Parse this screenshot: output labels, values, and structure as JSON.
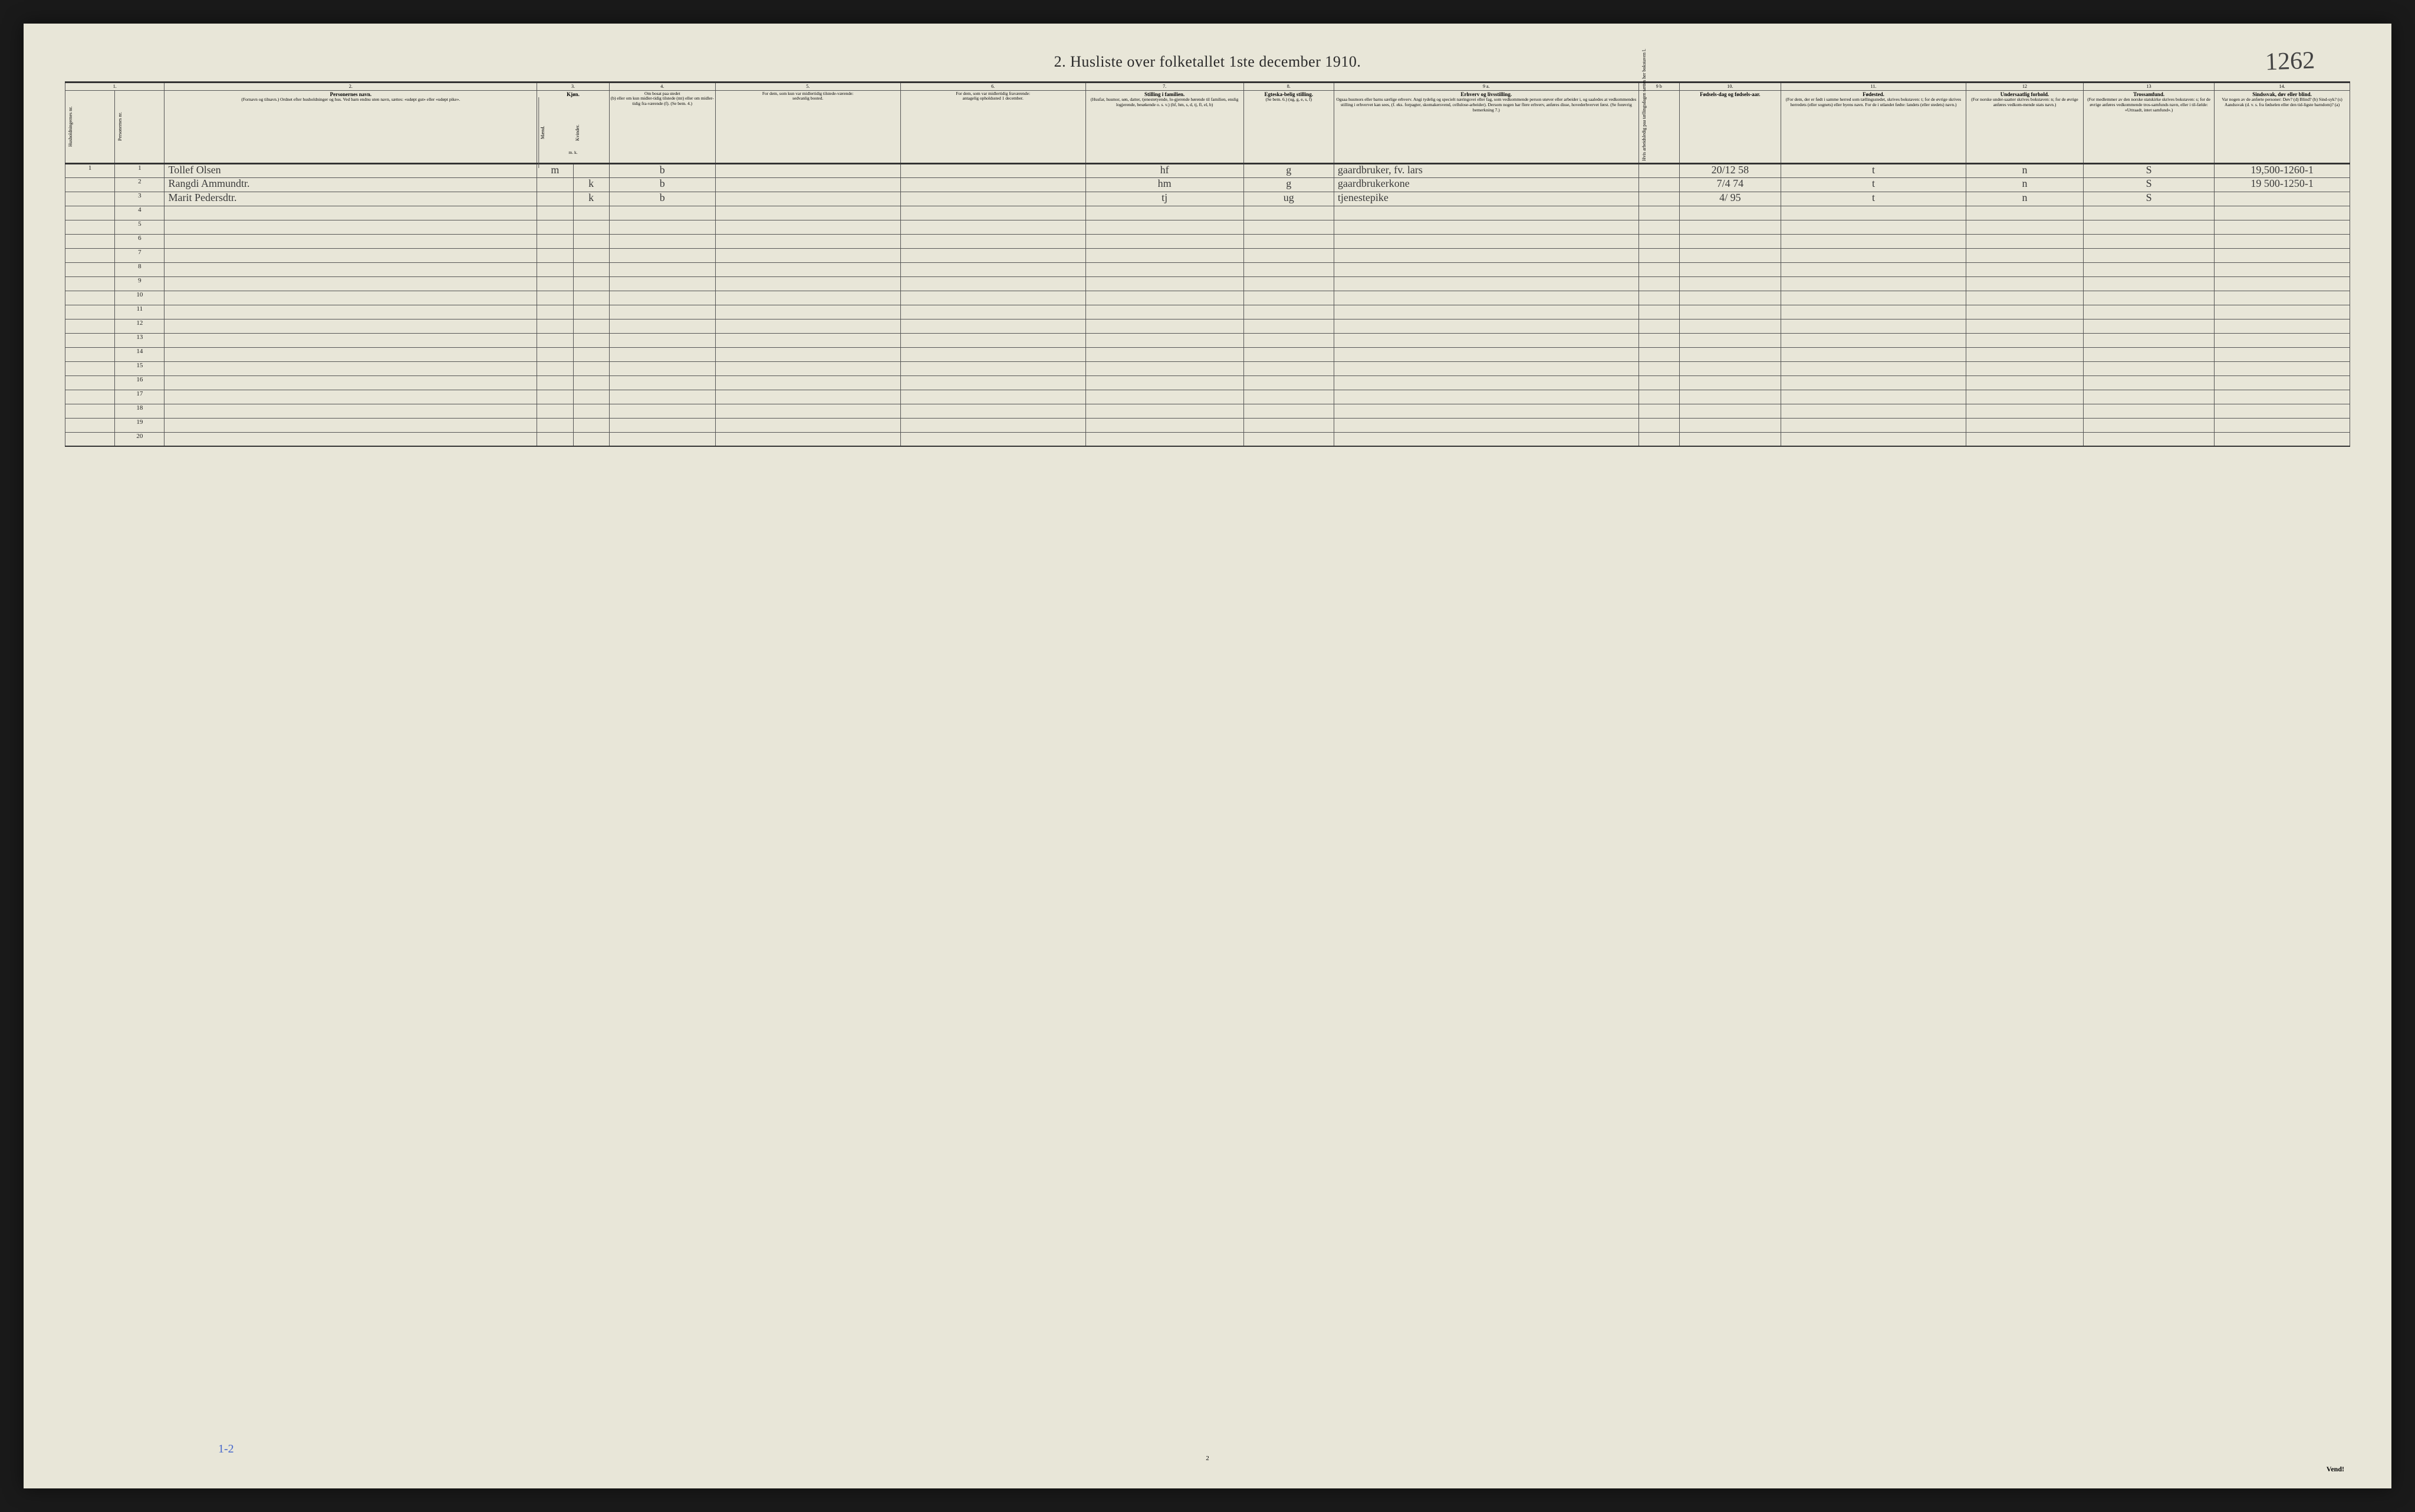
{
  "title": "2.  Husliste over folketallet 1ste december 1910.",
  "handwritten_top": "1262",
  "page_num": "2",
  "footer": "Vend!",
  "bottom_tally": "1-2",
  "column_numbers": [
    "1.",
    "2.",
    "3.",
    "4.",
    "5.",
    "6.",
    "7.",
    "8.",
    "9 a.",
    "9 b",
    "10.",
    "11.",
    "12",
    "13",
    "14."
  ],
  "headers": {
    "h1a": "Husholdningernes nr.",
    "h1b": "Personernes nr.",
    "h2_main": "Personernes navn.",
    "h2_sub": "(Fornavn og tilnavn.)\nOrdnet efter husholdninger og hus.\nVed barn endnu uten navn, sættes: «udøpt gut» eller «udøpt pike».",
    "h3_main": "Kjøn.",
    "h3a": "Mænd.",
    "h3b": "Kvinder.",
    "h3_sub": "m. k.",
    "h4_main": "Om bosat paa stedet",
    "h4_sub": "(b) eller om kun midler-tidig tilstede (mt) eller om midler-tidig fra-værende (f). (Se bem. 4.)",
    "h5_main": "For dem, som kun var midlertidig tilstede-værende:",
    "h5_sub": "sedvanlig bosted.",
    "h6_main": "For dem, som var midlertidig fraværende:",
    "h6_sub": "antagelig opholdssted 1 december.",
    "h7_main": "Stilling i familien.",
    "h7_sub": "(Husfar, husmor, søn, datter, tjenestetyende, lo-gjerende hørende til familien, enslig logjerende, besøkende o. s. v.)\n(hf, hm, s, d, tj, fl, el, b)",
    "h8_main": "Egteska-belig stilling.",
    "h8_sub": "(Se bem. 6.)\n(ug, g, e, s, f)",
    "h9a_main": "Erhverv og livsstilling.",
    "h9a_sub": "Ogsaa husmors eller barns særlige erhverv. Angi tydelig og specielt næringsvei eller fag, som vedkommende person utøver eller arbeider i, og saaledes at vedkommendes stilling i erhvervet kan sees, (f. eks. forpagter, skomakersvend, cellulose-arbeider). Dersom nogen har flere erhverv, anføres disse, hovederhvervet først.\n(Se forøvrig bemerkning 7.)",
    "h9b": "Hvis arbeidsledig paa tællingsdagen sættes her bokstaven l.",
    "h10_main": "Fødsels-dag og fødsels-aar.",
    "h11_main": "Fødested.",
    "h11_sub": "(For dem, der er født i samme herred som tællingsstedet, skrives bokstaven: t; for de øvrige skrives herredets (eller sognets) eller byens navn. For de i utlandet fødte: landets (eller stedets) navn.)",
    "h12_main": "Undersaatlig forhold.",
    "h12_sub": "(For norske under-saatter skrives bokstaven: n; for de øvrige anføres vedkom-mende stats navn.)",
    "h13_main": "Trossamfund.",
    "h13_sub": "(For medlemmer av den norske statskirke skrives bokstaven: s; for de øvrige anføres vedkommende tros-samfunds navn, eller i til-fælde: «Uttraadt, intet samfund».)",
    "h14_main": "Sindssvak, døv eller blind.",
    "h14_sub": "Var nogen av de anførte personer:\nDøv? (d)\nBlind? (b)\nSind-syk? (s)\nAandssvak (d. v. s. fra fødselen eller den tid-ligste barndom)? (a)"
  },
  "rows": [
    {
      "hh": "1",
      "pn": "1",
      "name": "Tollef Olsen",
      "sex_m": "m",
      "sex_k": "",
      "bosat": "b",
      "c5": "",
      "c6": "",
      "stilling": "hf",
      "egte": "g",
      "erhverv": "gaardbruker, fv. lars",
      "c9b": "",
      "fodsel": "20/12 58",
      "fodested": "t",
      "forhold": "n",
      "tros": "S",
      "c14": "19,500-1260-1"
    },
    {
      "hh": "",
      "pn": "2",
      "name": "Rangdi Ammundtr.",
      "sex_m": "",
      "sex_k": "k",
      "bosat": "b",
      "c5": "",
      "c6": "",
      "stilling": "hm",
      "egte": "g",
      "erhverv": "gaardbrukerkone",
      "c9b": "",
      "fodsel": "7/4 74",
      "fodested": "t",
      "forhold": "n",
      "tros": "S",
      "c14": "19 500-1250-1"
    },
    {
      "hh": "",
      "pn": "3",
      "name": "Marit Pedersdtr.",
      "sex_m": "",
      "sex_k": "k",
      "bosat": "b",
      "c5": "",
      "c6": "",
      "stilling": "tj",
      "egte": "ug",
      "erhverv": "tjenestepike",
      "c9b": "",
      "fodsel": "4/ 95",
      "fodested": "t",
      "forhold": "n",
      "tros": "S",
      "c14": ""
    }
  ],
  "empty_row_labels": [
    "4",
    "5",
    "6",
    "7",
    "8",
    "9",
    "10",
    "11",
    "12",
    "13",
    "14",
    "15",
    "16",
    "17",
    "18",
    "19",
    "20"
  ],
  "col_widths_pct": [
    2.2,
    2.2,
    16.5,
    1.6,
    1.6,
    4.7,
    8.2,
    8.2,
    7.0,
    4.0,
    13.5,
    1.8,
    4.5,
    8.2,
    5.2,
    5.8,
    6.0
  ],
  "border_color": "#555",
  "text_color": "#2a2a2a",
  "handwriting_color": "#3a3a3a",
  "annotation_color": "#3355bb",
  "background_color": "#e8e6d8"
}
